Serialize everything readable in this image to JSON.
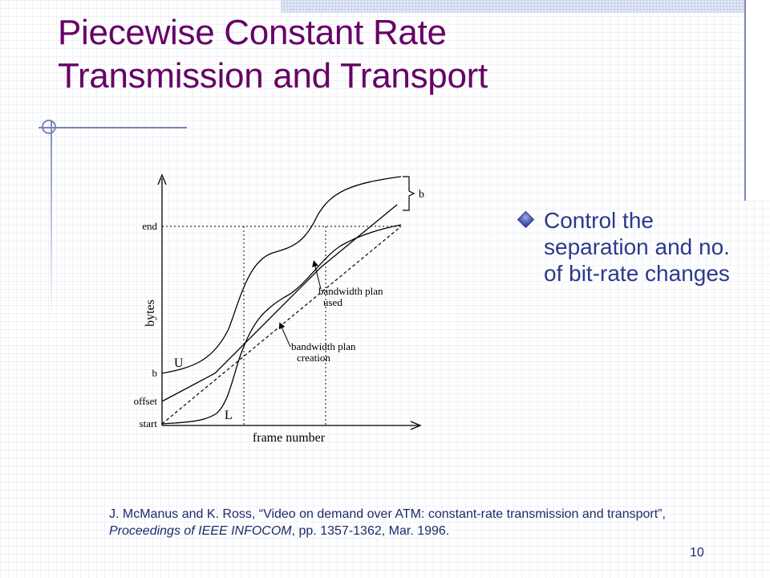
{
  "slide": {
    "title_line1": "Piecewise Constant Rate",
    "title_line2": "Transmission and Transport",
    "bullet": "Control the separation and no. of bit-rate changes",
    "citation": {
      "part1": "J. McManus and K. Ross, “Video on demand over ATM: constant-rate transmission and transport”, ",
      "italic": "Proceedings of IEEE INFOCOM",
      "part2": ", pp. 1357-1362, Mar. 1996."
    },
    "page_number": "10"
  },
  "figure": {
    "x_axis_label": "frame number",
    "y_axis_label": "bytes",
    "y_ticks": [
      "end",
      "b",
      "offset",
      "start"
    ],
    "curve_labels": {
      "upper": "U",
      "lower": "L",
      "b_bracket": "b"
    },
    "annotation_used_line1": "bandwidth plan",
    "annotation_used_line2": "used",
    "annotation_creation_line1": "bandwidth plan",
    "annotation_creation_line2": "creation"
  },
  "colors": {
    "title": "#660066",
    "body_text": "#2c3a8a",
    "accent": "#7a86b8"
  }
}
